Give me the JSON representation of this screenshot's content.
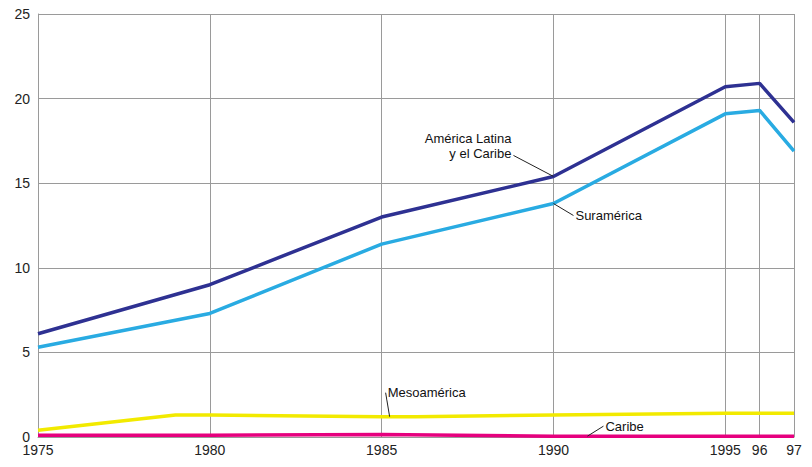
{
  "chart_data": {
    "type": "line",
    "series": [
      {
        "name": "América Latina y el Caribe",
        "color": "#2e3192",
        "x": [
          1975,
          1980,
          1985,
          1990,
          1995,
          1996,
          1997
        ],
        "values": [
          6.1,
          9.0,
          13.0,
          15.4,
          20.7,
          20.9,
          18.6
        ]
      },
      {
        "name": "Suramérica",
        "color": "#29abe2",
        "x": [
          1975,
          1980,
          1985,
          1990,
          1995,
          1996,
          1997
        ],
        "values": [
          5.3,
          7.3,
          11.4,
          13.8,
          19.1,
          19.3,
          16.9
        ]
      },
      {
        "name": "Mesoamérica",
        "color": "#f2ea00",
        "x": [
          1975,
          1979,
          1980,
          1985,
          1986,
          1990,
          1995,
          1996,
          1997
        ],
        "values": [
          0.4,
          1.3,
          1.3,
          1.2,
          1.2,
          1.3,
          1.4,
          1.4,
          1.4
        ]
      },
      {
        "name": "Caribe",
        "color": "#e6007e",
        "x": [
          1975,
          1980,
          1985,
          1990,
          1995,
          1996,
          1997
        ],
        "values": [
          0.1,
          0.1,
          0.15,
          0.05,
          0.05,
          0.05,
          0.05
        ]
      }
    ],
    "xlim": [
      1975,
      1997
    ],
    "xticks": [
      1975,
      1980,
      1985,
      1990,
      1995,
      {
        "value": 1996,
        "label": "96"
      },
      {
        "value": 1997,
        "label": "97"
      }
    ],
    "ylim": [
      0,
      25
    ],
    "yticks": [
      0,
      5,
      10,
      15,
      20,
      25
    ],
    "grid": true
  }
}
